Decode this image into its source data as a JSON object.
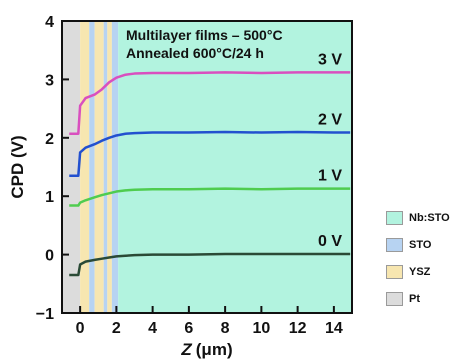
{
  "chart_data": {
    "type": "line",
    "title": "",
    "annotations": [
      "Multilayer films – 500°C",
      "Annealed 600°C/24 h"
    ],
    "xlabel_italic": "Z",
    "xlabel_unit": "(μm)",
    "ylabel": "CPD (V)",
    "xlim": [
      -1,
      15
    ],
    "ylim": [
      -1,
      4
    ],
    "xticks": [
      0,
      2,
      4,
      6,
      8,
      10,
      12,
      14
    ],
    "yticks": [
      -1,
      0,
      1,
      2,
      3,
      4
    ],
    "xtick_labels": [
      "0",
      "2",
      "4",
      "6",
      "8",
      "10",
      "12",
      "14"
    ],
    "ytick_labels": [
      "−1",
      "0",
      "1",
      "2",
      "3",
      "4"
    ],
    "regions": [
      {
        "name": "Pt",
        "from": -1,
        "to": 0,
        "color": "#dcdcdc"
      },
      {
        "name": "YSZ",
        "from": 0,
        "to": 0.5,
        "color": "#f7e6b0"
      },
      {
        "name": "STO",
        "from": 0.5,
        "to": 0.8,
        "color": "#b7d3f2"
      },
      {
        "name": "YSZ",
        "from": 0.8,
        "to": 1.3,
        "color": "#f7e6b0"
      },
      {
        "name": "STO",
        "from": 1.3,
        "to": 1.5,
        "color": "#b7d3f2"
      },
      {
        "name": "YSZ",
        "from": 1.5,
        "to": 1.75,
        "color": "#f7e6b0"
      },
      {
        "name": "STO",
        "from": 1.75,
        "to": 2.1,
        "color": "#b7d3f2"
      },
      {
        "name": "Nb:STO",
        "from": 2.1,
        "to": 15,
        "color": "#b2f3df"
      }
    ],
    "legend": [
      {
        "name": "Nb:STO",
        "color": "#b2f3df"
      },
      {
        "name": "STO",
        "color": "#b7d3f2"
      },
      {
        "name": "YSZ",
        "color": "#f7e6b0"
      },
      {
        "name": "Pt",
        "color": "#dcdcdc"
      }
    ],
    "series": [
      {
        "name": "3 V",
        "color": "#d94fbf",
        "x": [
          -0.6,
          -0.1,
          0,
          0.3,
          0.8,
          1.2,
          1.6,
          2.0,
          2.5,
          3.0,
          4.0,
          6.0,
          8.0,
          10.0,
          12.0,
          14.0,
          14.9
        ],
        "y": [
          2.07,
          2.07,
          2.55,
          2.68,
          2.74,
          2.83,
          2.95,
          3.03,
          3.08,
          3.1,
          3.11,
          3.11,
          3.12,
          3.11,
          3.12,
          3.12,
          3.12
        ]
      },
      {
        "name": "2 V",
        "color": "#2250cf",
        "x": [
          -0.6,
          -0.1,
          0,
          0.3,
          0.8,
          1.2,
          1.6,
          2.0,
          2.5,
          3.0,
          4.0,
          6.0,
          8.0,
          10.0,
          12.0,
          14.0,
          14.9
        ],
        "y": [
          1.35,
          1.35,
          1.75,
          1.83,
          1.89,
          1.95,
          2.0,
          2.04,
          2.07,
          2.08,
          2.09,
          2.09,
          2.1,
          2.09,
          2.1,
          2.09,
          2.09
        ]
      },
      {
        "name": "1 V",
        "color": "#4fcc4f",
        "x": [
          -0.6,
          -0.1,
          0,
          0.3,
          0.8,
          1.2,
          1.6,
          2.0,
          2.5,
          3.0,
          4.0,
          6.0,
          8.0,
          10.0,
          12.0,
          14.0,
          14.9
        ],
        "y": [
          0.84,
          0.84,
          0.89,
          0.93,
          0.98,
          1.02,
          1.05,
          1.08,
          1.1,
          1.11,
          1.12,
          1.12,
          1.13,
          1.12,
          1.13,
          1.13,
          1.13
        ]
      },
      {
        "name": "0 V",
        "color": "#2a4a36",
        "x": [
          -0.6,
          -0.1,
          0,
          0.3,
          0.8,
          1.2,
          1.6,
          2.0,
          2.5,
          3.0,
          4.0,
          6.0,
          8.0,
          10.0,
          12.0,
          14.0,
          14.9
        ],
        "y": [
          -0.35,
          -0.35,
          -0.17,
          -0.12,
          -0.09,
          -0.07,
          -0.05,
          -0.03,
          -0.02,
          -0.01,
          0.0,
          0.0,
          0.01,
          0.01,
          0.01,
          0.01,
          0.01
        ]
      }
    ],
    "grid": false,
    "legend_position": "right"
  }
}
